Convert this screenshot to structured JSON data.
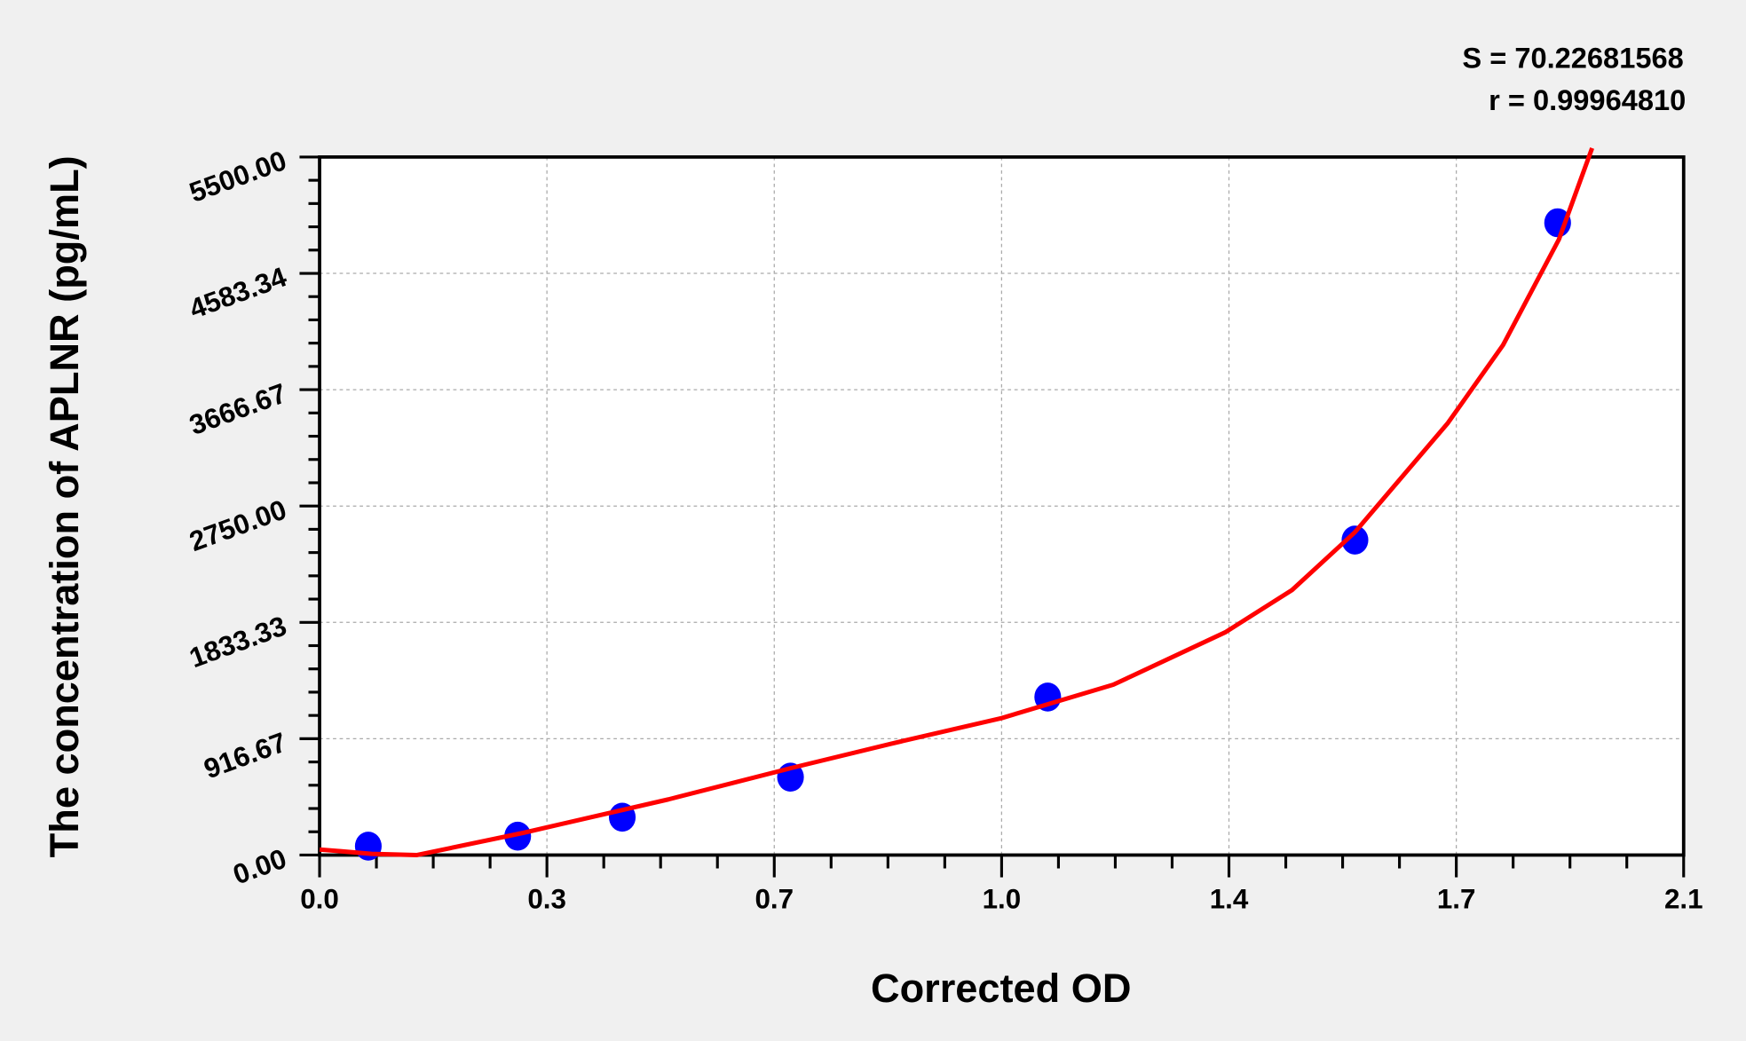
{
  "chart_data": {
    "type": "scatter",
    "title": "",
    "xlabel": "Corrected OD",
    "ylabel": "The concentration of APLNR (pg/mL)",
    "xlim": [
      0,
      2.1
    ],
    "ylim": [
      0,
      5500
    ],
    "x_ticks": [
      0,
      0.35,
      0.7,
      1.05,
      1.4,
      1.75,
      2.1
    ],
    "x_tick_labels": [
      "0.0",
      "0.3",
      "0.7",
      "1.0",
      "1.4",
      "1.7",
      "2.1"
    ],
    "y_ticks": [
      0,
      916.67,
      1833.33,
      2750,
      3666.67,
      4583.34,
      5500
    ],
    "y_tick_labels": [
      "0.00",
      "916.67",
      "1833.33",
      "2750.00",
      "3666.67",
      "4583.34",
      "5500.00"
    ],
    "grid": true,
    "annotations": [
      "S = 70.22681568",
      "r = 0.99964810"
    ],
    "points": {
      "color": "#0000ff",
      "x": [
        0.075,
        0.305,
        0.466,
        0.725,
        1.121,
        1.594,
        1.906
      ],
      "y": [
        70,
        149,
        298,
        614,
        1245,
        2482,
        4982
      ]
    },
    "fit_curve": {
      "color": "#ff0000",
      "x": [
        0,
        0.08,
        0.15,
        0.314,
        0.537,
        0.725,
        0.88,
        1.05,
        1.222,
        1.394,
        1.497,
        1.594,
        1.737,
        1.822,
        1.908,
        1.959
      ],
      "y": [
        44,
        10,
        0,
        175,
        439,
        684,
        877,
        1079,
        1342,
        1754,
        2088,
        2544,
        3404,
        4018,
        4851,
        5570
      ]
    }
  }
}
